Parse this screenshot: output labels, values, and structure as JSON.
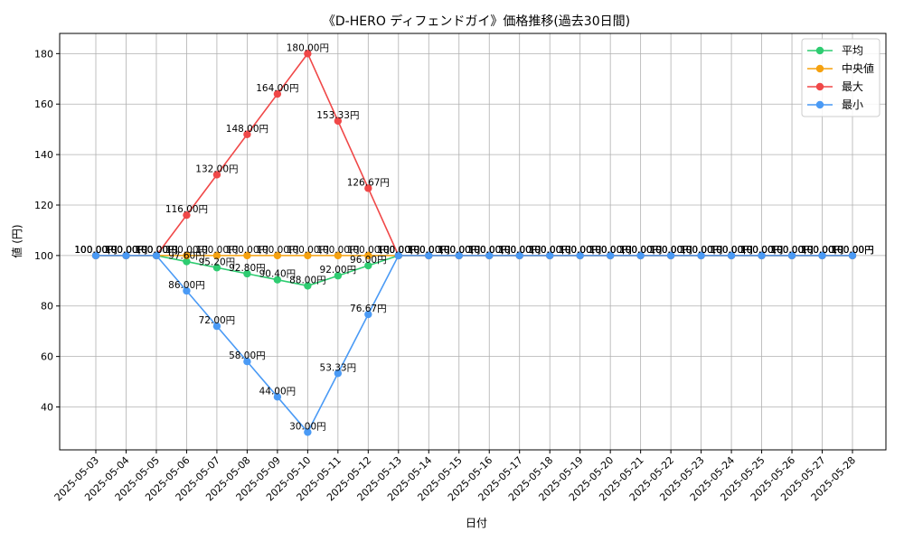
{
  "chart_data": {
    "type": "line",
    "title": "《D-HERO ディフェンドガイ》価格推移(過去30日間)",
    "xlabel": "日付",
    "ylabel": "値 (円)",
    "ylim": [
      23,
      188
    ],
    "yticks": [
      40,
      60,
      80,
      100,
      120,
      140,
      160,
      180
    ],
    "grid": true,
    "legend_position": "top-right",
    "label_suffix": "円",
    "categories": [
      "2025-05-03",
      "2025-05-04",
      "2025-05-05",
      "2025-05-06",
      "2025-05-07",
      "2025-05-08",
      "2025-05-09",
      "2025-05-10",
      "2025-05-11",
      "2025-05-12",
      "2025-05-13",
      "2025-05-14",
      "2025-05-15",
      "2025-05-16",
      "2025-05-17",
      "2025-05-18",
      "2025-05-19",
      "2025-05-20",
      "2025-05-21",
      "2025-05-22",
      "2025-05-23",
      "2025-05-24",
      "2025-05-25",
      "2025-05-26",
      "2025-05-27",
      "2025-05-28"
    ],
    "series": [
      {
        "name": "平均",
        "color": "#2ecc71",
        "values": [
          100,
          100,
          100,
          97.6,
          95.2,
          92.8,
          90.4,
          88,
          92,
          96,
          100,
          100,
          100,
          100,
          100,
          100,
          100,
          100,
          100,
          100,
          100,
          100,
          100,
          100,
          100,
          100
        ]
      },
      {
        "name": "中央値",
        "color": "#f5a10f",
        "values": [
          100,
          100,
          100,
          100,
          100,
          100,
          100,
          100,
          100,
          100,
          100,
          100,
          100,
          100,
          100,
          100,
          100,
          100,
          100,
          100,
          100,
          100,
          100,
          100,
          100,
          100
        ]
      },
      {
        "name": "最大",
        "color": "#f04848",
        "values": [
          100,
          100,
          100,
          116,
          132,
          148,
          164,
          180,
          153.33,
          126.67,
          100,
          100,
          100,
          100,
          100,
          100,
          100,
          100,
          100,
          100,
          100,
          100,
          100,
          100,
          100,
          100
        ]
      },
      {
        "name": "最小",
        "color": "#4a9af5",
        "values": [
          100,
          100,
          100,
          86,
          72,
          58,
          44,
          30,
          53.33,
          76.67,
          100,
          100,
          100,
          100,
          100,
          100,
          100,
          100,
          100,
          100,
          100,
          100,
          100,
          100,
          100,
          100
        ]
      }
    ]
  }
}
